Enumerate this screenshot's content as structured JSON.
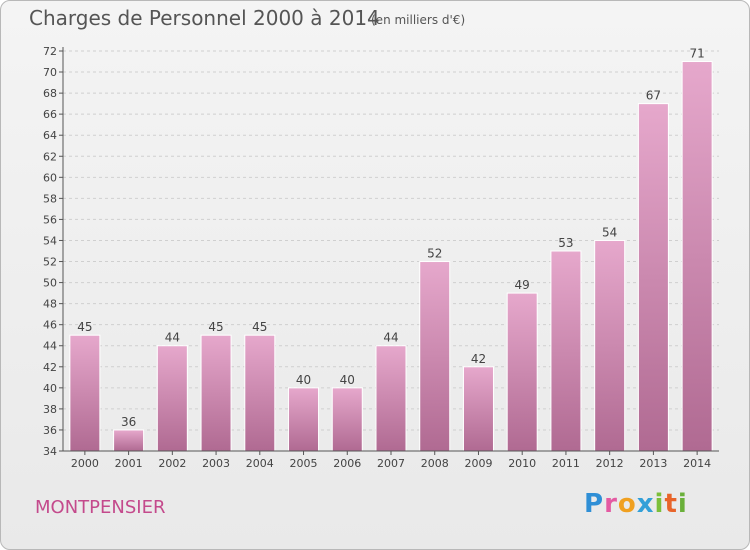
{
  "header": {
    "title": "Charges de Personnel 2000 à 2014",
    "subtitle": "(en milliers d'€)"
  },
  "footer": {
    "commune": "MONTPENSIER",
    "logo_text": "Proxiti"
  },
  "colors": {
    "bar_top": "#e6a8cc",
    "bar_bottom": "#b06a92",
    "commune_text": "#c44a8c",
    "axis": "#555555"
  },
  "chart_data": {
    "type": "bar",
    "categories": [
      "2000",
      "2001",
      "2002",
      "2003",
      "2004",
      "2005",
      "2006",
      "2007",
      "2008",
      "2009",
      "2010",
      "2011",
      "2012",
      "2013",
      "2014"
    ],
    "values": [
      45,
      36,
      44,
      45,
      45,
      40,
      40,
      44,
      52,
      42,
      49,
      53,
      54,
      67,
      71
    ],
    "title": "Charges de Personnel 2000 à 2014",
    "subtitle": "(en milliers d'€)",
    "ylim": [
      34,
      72
    ],
    "yticks": [
      34,
      36,
      38,
      40,
      42,
      44,
      46,
      48,
      50,
      52,
      54,
      56,
      58,
      60,
      62,
      64,
      66,
      68,
      70,
      72
    ],
    "grid": true
  }
}
